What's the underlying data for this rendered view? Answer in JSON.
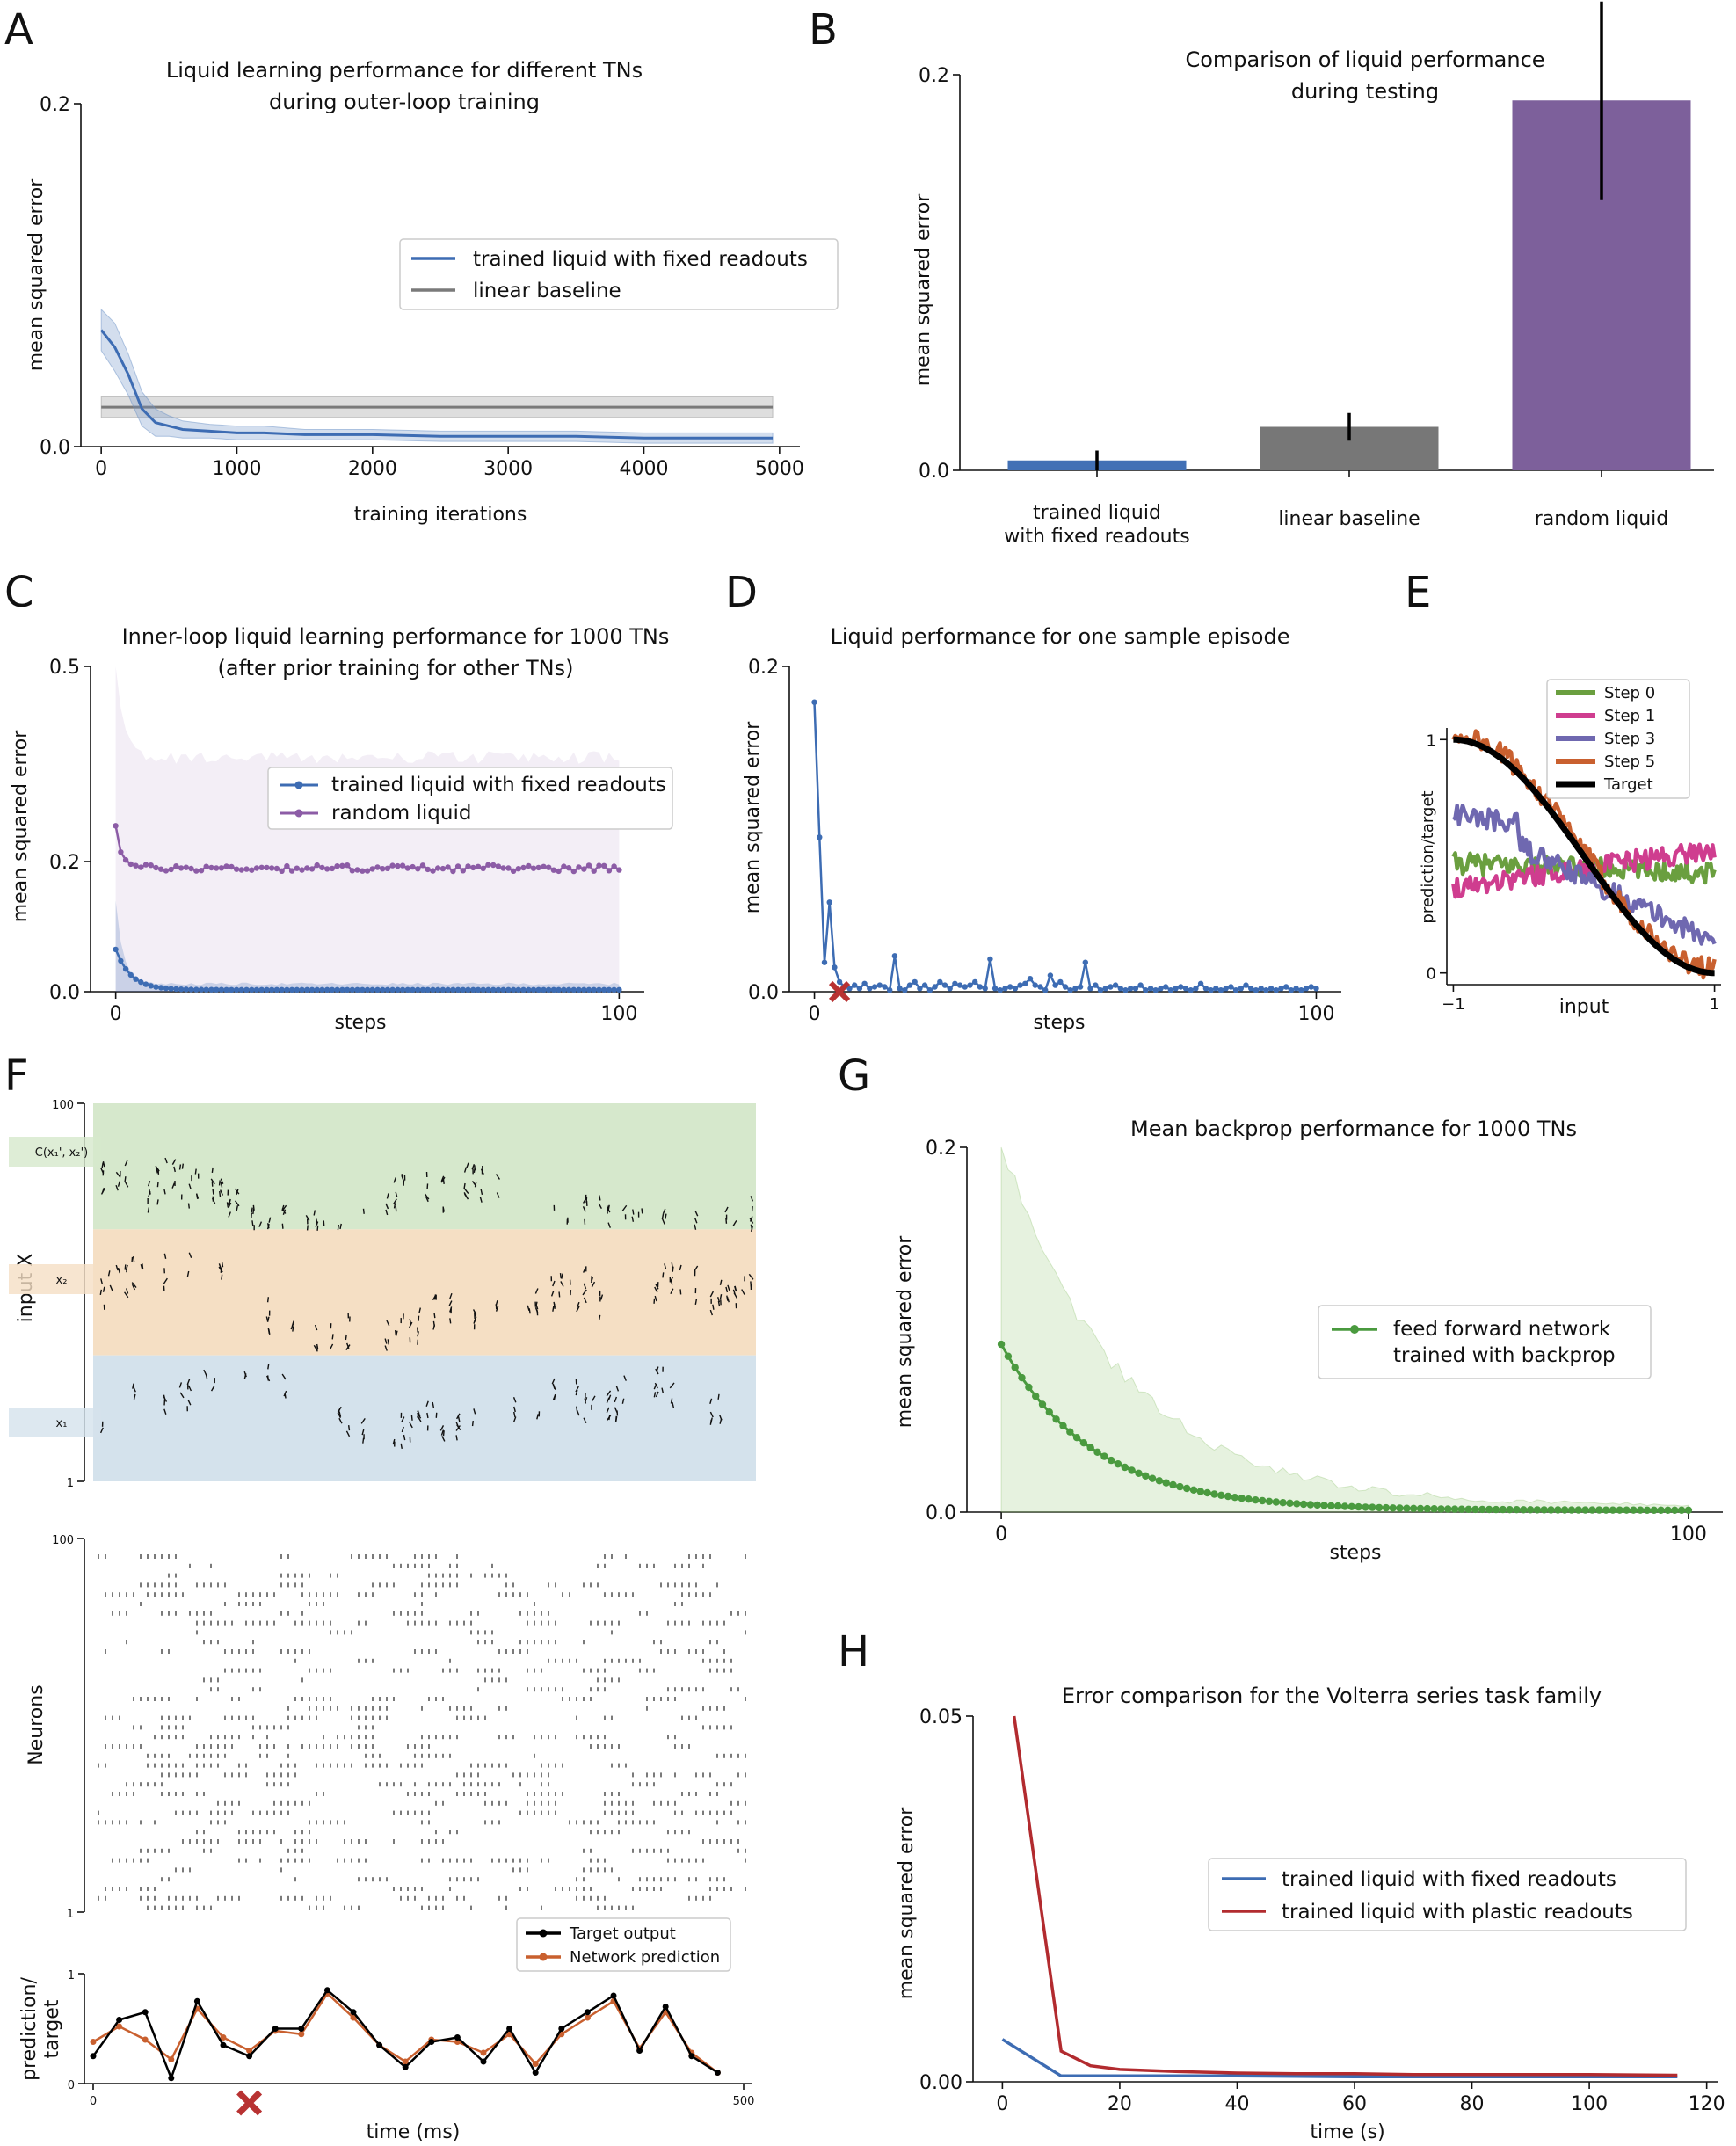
{
  "panels": {
    "A": "A",
    "B": "B",
    "C": "C",
    "D": "D",
    "E": "E",
    "F": "F",
    "G": "G",
    "H": "H"
  },
  "chart_data": [
    {
      "panel": "A",
      "type": "line",
      "title": [
        "Liquid learning performance for different TNs",
        "during outer-loop training"
      ],
      "xlabel": "training iterations",
      "ylabel": "mean squared error",
      "xlim": [
        -150,
        5150
      ],
      "ylim": [
        0,
        0.2
      ],
      "xticks": [
        0,
        1000,
        2000,
        3000,
        4000,
        5000
      ],
      "yticks": [
        "0.0",
        "0.2"
      ],
      "legend_position": "center-right",
      "series": [
        {
          "name": "trained liquid with fixed readouts",
          "color": "#3d6cb3",
          "x": [
            0,
            100,
            200,
            300,
            400,
            500,
            600,
            800,
            1000,
            1200,
            1500,
            2000,
            2500,
            3000,
            3500,
            4000,
            4500,
            4950
          ],
          "y": [
            0.068,
            0.058,
            0.042,
            0.022,
            0.014,
            0.012,
            0.01,
            0.009,
            0.008,
            0.008,
            0.007,
            0.007,
            0.006,
            0.006,
            0.006,
            0.005,
            0.005,
            0.005
          ],
          "band": [
            0.012,
            0.014,
            0.012,
            0.01,
            0.008,
            0.006,
            0.005,
            0.004,
            0.004,
            0.004,
            0.003,
            0.003,
            0.003,
            0.003,
            0.003,
            0.003,
            0.003,
            0.003
          ]
        },
        {
          "name": "linear baseline",
          "color": "#7a7a7a",
          "x": [
            0,
            4950
          ],
          "y": [
            0.023,
            0.023
          ],
          "band": [
            0.006,
            0.006
          ]
        }
      ]
    },
    {
      "panel": "B",
      "type": "bar",
      "title": [
        "Comparison of liquid performance",
        "during testing"
      ],
      "ylabel": "mean squared error",
      "ylim": [
        0,
        0.2
      ],
      "yticks": [
        "0.0",
        "0.2"
      ],
      "categories": [
        [
          "trained liquid",
          "with fixed readouts"
        ],
        [
          "linear baseline"
        ],
        [
          "random liquid"
        ]
      ],
      "values": [
        0.005,
        0.022,
        0.187
      ],
      "errors": [
        0.005,
        0.007,
        0.05
      ],
      "colors": [
        "#4270b5",
        "#777777",
        "#7d609b"
      ]
    },
    {
      "panel": "C",
      "type": "line",
      "title": [
        "Inner-loop liquid learning performance for 1000 TNs",
        "(after prior training for other TNs)"
      ],
      "xlabel": "steps",
      "ylabel": "mean squared error",
      "xlim": [
        -5,
        105
      ],
      "ylim": [
        0,
        0.5
      ],
      "xticks": [
        0,
        100
      ],
      "yticks": [
        "0.0",
        "0.2",
        "0.5"
      ],
      "legend_position": "center-right",
      "series": [
        {
          "name": "trained liquid with fixed readouts",
          "color": "#3d6cb3",
          "start": 0.065,
          "floor": 0.003,
          "decay": 3.0,
          "upper_start": 0.14,
          "upper_floor": 0.012
        },
        {
          "name": "random liquid",
          "color": "#8c5ca6",
          "start": 0.255,
          "floor": 0.19,
          "decay": 1.2,
          "upper_start": 0.5,
          "upper_floor": 0.36
        }
      ]
    },
    {
      "panel": "D",
      "type": "line",
      "title": [
        "Liquid performance for one sample episode"
      ],
      "xlabel": "steps",
      "ylabel": "mean squared error",
      "xlim": [
        -5,
        105
      ],
      "ylim": [
        0,
        0.2
      ],
      "xticks": [
        0,
        100
      ],
      "yticks": [
        "0.0",
        "0.2"
      ],
      "series": [
        {
          "name": "",
          "color": "#3d6cb3",
          "x": [
            0,
            1,
            2,
            3,
            4,
            5,
            6,
            7,
            8,
            9,
            10,
            11,
            12,
            13,
            14,
            15,
            16,
            17,
            18,
            19,
            20,
            21,
            22,
            23,
            24,
            25,
            26,
            27,
            28,
            29,
            30,
            31,
            32,
            33,
            34,
            35,
            36,
            37,
            38,
            39,
            40,
            41,
            42,
            43,
            44,
            45,
            46,
            47,
            48,
            49,
            50,
            51,
            52,
            53,
            54,
            55,
            56,
            57,
            58,
            59,
            60,
            61,
            62,
            63,
            64,
            65,
            66,
            67,
            68,
            69,
            70,
            71,
            72,
            73,
            74,
            75,
            76,
            77,
            78,
            79,
            80,
            81,
            82,
            83,
            84,
            85,
            86,
            87,
            88,
            89,
            90,
            91,
            92,
            93,
            94,
            95,
            96,
            97,
            98,
            99,
            100
          ],
          "y": [
            0.178,
            0.095,
            0.018,
            0.055,
            0.015,
            0.006,
            0.003,
            0.002,
            0.004,
            0.002,
            0.005,
            0.002,
            0.003,
            0.004,
            0.003,
            0.001,
            0.022,
            0.002,
            0.001,
            0.004,
            0.006,
            0.002,
            0.004,
            0.001,
            0.003,
            0.006,
            0.004,
            0.002,
            0.005,
            0.004,
            0.003,
            0.004,
            0.006,
            0.003,
            0.002,
            0.02,
            0.002,
            0.001,
            0.002,
            0.003,
            0.002,
            0.004,
            0.005,
            0.008,
            0.004,
            0.003,
            0.001,
            0.01,
            0.004,
            0.006,
            0.003,
            0.001,
            0.002,
            0.003,
            0.018,
            0.002,
            0.004,
            0.001,
            0.002,
            0.003,
            0.004,
            0.002,
            0.001,
            0.002,
            0.002,
            0.004,
            0.001,
            0.002,
            0.001,
            0.002,
            0.003,
            0.001,
            0.002,
            0.003,
            0.002,
            0.001,
            0.002,
            0.005,
            0.002,
            0.001,
            0.002,
            0.001,
            0.002,
            0.003,
            0.001,
            0.002,
            0.004,
            0.002,
            0.001,
            0.002,
            0.001,
            0.002,
            0.001,
            0.002,
            0.003,
            0.001,
            0.002,
            0.001,
            0.002,
            0.003,
            0.002
          ]
        }
      ],
      "marker": {
        "symbol": "x",
        "x": 5,
        "y": 0,
        "color": "#b83232"
      }
    },
    {
      "panel": "E",
      "type": "line",
      "xlabel": "input",
      "ylabel": "prediction/target",
      "xlim": [
        -1.05,
        1.05
      ],
      "ylim": [
        -0.05,
        1.05
      ],
      "xticks": [
        "−1",
        "1"
      ],
      "yticks": [
        "0",
        "1"
      ],
      "legend_position": "top-center",
      "series": [
        {
          "name": "Step 0",
          "color": "#6a9f3f"
        },
        {
          "name": "Step 1",
          "color": "#cf3d8f"
        },
        {
          "name": "Step 3",
          "color": "#6f68b0"
        },
        {
          "name": "Step 5",
          "color": "#c9602f"
        },
        {
          "name": "Target",
          "color": "#000000"
        }
      ]
    },
    {
      "panel": "F",
      "type": "scatter",
      "input_axis": {
        "ylabel": "input X",
        "yticks": [
          "1",
          "100"
        ],
        "bands": [
          {
            "label": "C(x₁', x₂')",
            "color": "#d6e8cc"
          },
          {
            "label": "x₂",
            "color": "#f5dfc4"
          },
          {
            "label": "x₁",
            "color": "#d4e2ec"
          }
        ]
      },
      "neuron_axis": {
        "ylabel": "Neurons",
        "yticks": [
          "1",
          "100"
        ]
      },
      "output_axis": {
        "xlabel": "time (ms)",
        "ylabel": [
          "prediction/",
          "target"
        ],
        "xticks": [
          "0",
          "500"
        ],
        "yticks": [
          "0",
          "1"
        ],
        "xlim": [
          0,
          500
        ],
        "ylim": [
          0,
          1
        ],
        "series": [
          {
            "name": "Target output",
            "color": "#000000",
            "x": [
              0,
              20,
              40,
              60,
              80,
              100,
              120,
              140,
              160,
              180,
              200,
              220,
              240,
              260,
              280,
              300,
              320,
              340,
              360,
              380,
              400,
              420,
              440,
              460,
              480
            ],
            "y": [
              0.25,
              0.58,
              0.65,
              0.05,
              0.75,
              0.35,
              0.25,
              0.5,
              0.5,
              0.85,
              0.65,
              0.35,
              0.15,
              0.38,
              0.42,
              0.2,
              0.5,
              0.1,
              0.5,
              0.65,
              0.8,
              0.3,
              0.7,
              0.25,
              0.1
            ]
          },
          {
            "name": "Network prediction",
            "color": "#c9602f",
            "x": [
              0,
              20,
              40,
              60,
              80,
              100,
              120,
              140,
              160,
              180,
              200,
              220,
              240,
              260,
              280,
              300,
              320,
              340,
              360,
              380,
              400,
              420,
              440,
              460,
              480
            ],
            "y": [
              0.38,
              0.52,
              0.4,
              0.22,
              0.68,
              0.42,
              0.3,
              0.48,
              0.45,
              0.82,
              0.6,
              0.35,
              0.2,
              0.4,
              0.38,
              0.28,
              0.45,
              0.18,
              0.45,
              0.6,
              0.75,
              0.32,
              0.65,
              0.28,
              0.1
            ]
          }
        ],
        "marker": {
          "symbol": "x",
          "x": 120,
          "color": "#b83232"
        }
      }
    },
    {
      "panel": "G",
      "type": "line",
      "title": [
        "Mean backprop performance for 1000 TNs"
      ],
      "xlabel": "steps",
      "ylabel": "mean squared error",
      "xlim": [
        -5,
        105
      ],
      "ylim": [
        0,
        0.2
      ],
      "xticks": [
        0,
        100
      ],
      "yticks": [
        "0.0",
        "0.2"
      ],
      "legend_position": "center-right",
      "series": [
        {
          "name": [
            "feed forward network",
            "trained with backprop"
          ],
          "color": "#4a9a3f",
          "start": 0.092,
          "decay": 0.075,
          "upper_start": 0.2
        }
      ]
    },
    {
      "panel": "H",
      "type": "line",
      "title": [
        "Error comparison for the Volterra series task family"
      ],
      "xlabel": "time (s)",
      "ylabel": "mean squared error",
      "xlim": [
        -5,
        122
      ],
      "ylim": [
        0,
        0.05
      ],
      "xticks": [
        0,
        20,
        40,
        60,
        80,
        100,
        120
      ],
      "yticks": [
        "0.00",
        "0.05"
      ],
      "legend_position": "center-right",
      "series": [
        {
          "name": "trained liquid with fixed readouts",
          "color": "#3d6cb3",
          "x": [
            0,
            10,
            20,
            40,
            60,
            80,
            100,
            115
          ],
          "y": [
            0.0058,
            0.0008,
            0.0008,
            0.0008,
            0.0007,
            0.0007,
            0.0007,
            0.0007
          ]
        },
        {
          "name": "trained liquid with plastic readouts",
          "color": "#b22b2f",
          "x": [
            2,
            10,
            15,
            20,
            30,
            40,
            50,
            60,
            70,
            80,
            90,
            100,
            115
          ],
          "y": [
            0.05,
            0.0042,
            0.0022,
            0.0017,
            0.0014,
            0.0012,
            0.0011,
            0.0011,
            0.001,
            0.001,
            0.001,
            0.001,
            0.0009
          ]
        }
      ]
    }
  ]
}
